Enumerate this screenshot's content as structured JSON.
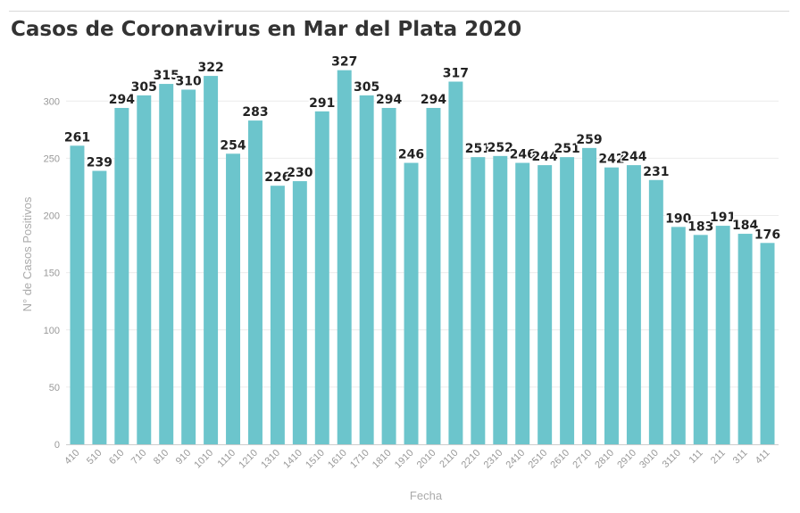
{
  "chart_data": {
    "type": "bar",
    "title": "Casos de Coronavirus en Mar del Plata 2020",
    "xlabel": "Fecha",
    "ylabel": "N° de Casos Positivos",
    "ylim": [
      0,
      340
    ],
    "yticks": [
      0,
      50,
      100,
      150,
      200,
      250,
      300
    ],
    "grid": true,
    "legend": "none",
    "colors": {
      "bar": "#6cc5cc",
      "grid": "#ececec",
      "axis": "#cccccc"
    },
    "categories": [
      "410",
      "510",
      "610",
      "710",
      "810",
      "910",
      "1010",
      "1110",
      "1210",
      "1310",
      "1410",
      "1510",
      "1610",
      "1710",
      "1810",
      "1910",
      "2010",
      "2110",
      "2210",
      "2310",
      "2410",
      "2510",
      "2610",
      "2710",
      "2810",
      "2910",
      "3010",
      "3110",
      "111",
      "211",
      "311",
      "411"
    ],
    "values": [
      261,
      239,
      294,
      305,
      315,
      310,
      322,
      254,
      283,
      226,
      230,
      291,
      327,
      305,
      294,
      246,
      294,
      317,
      251,
      252,
      246,
      244,
      251,
      259,
      242,
      244,
      231,
      190,
      183,
      191,
      184,
      176
    ]
  }
}
